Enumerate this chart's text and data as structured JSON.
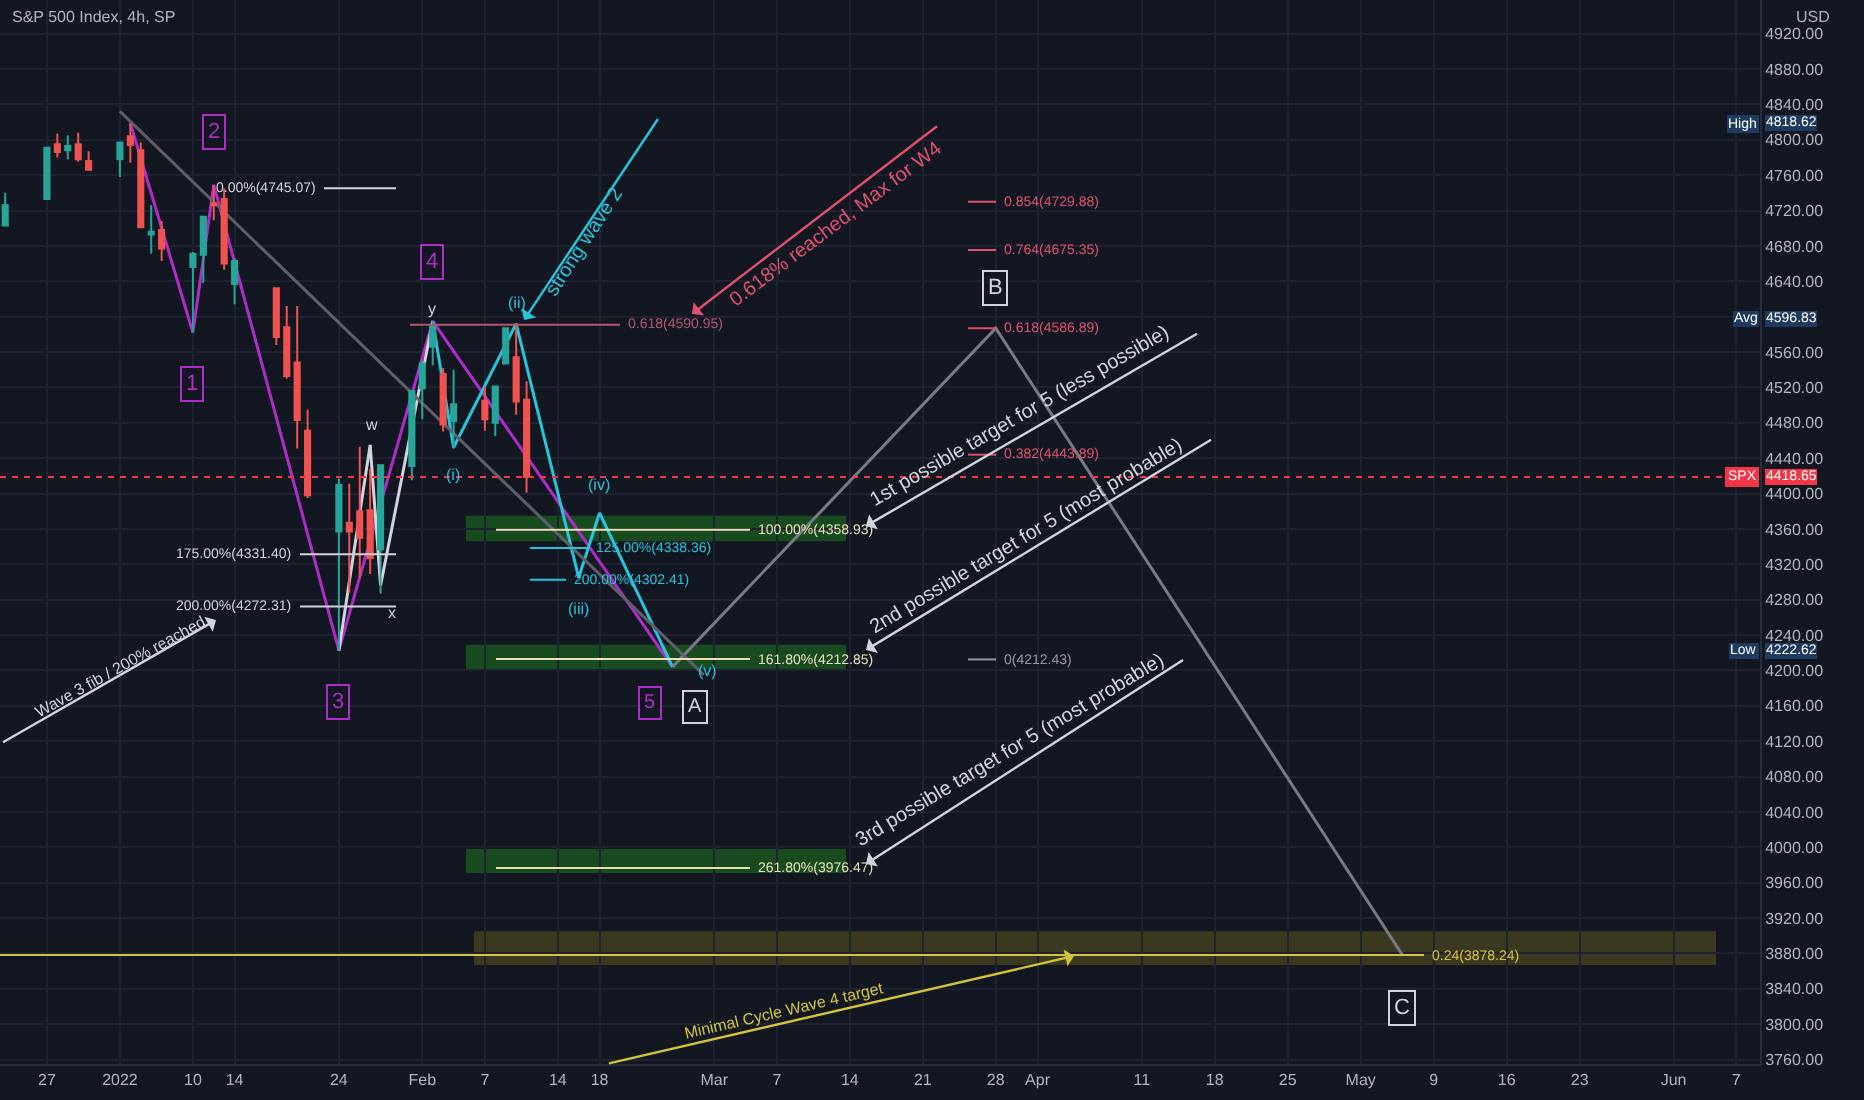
{
  "chart_data": {
    "type": "candlestick",
    "title": "S&P 500 Index, 4h, SP",
    "ylabel": "USD",
    "x": [
      "2021-12-23",
      "2021-12-27",
      "2021-12-28",
      "2021-12-29",
      "2021-12-30",
      "2021-12-31",
      "2022-01-03",
      "2022-01-04",
      "2022-01-05",
      "2022-01-06",
      "2022-01-07",
      "2022-01-10",
      "2022-01-11",
      "2022-01-12",
      "2022-01-13",
      "2022-01-14",
      "2022-01-18",
      "2022-01-19",
      "2022-01-20",
      "2022-01-21",
      "2022-01-24",
      "2022-01-25",
      "2022-01-26",
      "2022-01-27",
      "2022-01-28",
      "2022-01-31",
      "2022-02-01",
      "2022-02-02",
      "2022-02-03",
      "2022-02-04",
      "2022-02-07",
      "2022-02-08",
      "2022-02-09",
      "2022-02-10",
      "2022-02-11"
    ],
    "ohlc": [
      [
        4703,
        4740,
        4703,
        4726
      ],
      [
        4733,
        4791,
        4733,
        4791
      ],
      [
        4795,
        4807,
        4780,
        4786
      ],
      [
        4788,
        4805,
        4778,
        4793
      ],
      [
        4795,
        4808,
        4775,
        4778
      ],
      [
        4776,
        4787,
        4766,
        4766
      ],
      [
        4778,
        4797,
        4758,
        4797
      ],
      [
        4804,
        4818.62,
        4774,
        4794
      ],
      [
        4788,
        4797,
        4700,
        4701
      ],
      [
        4693,
        4726,
        4671,
        4696
      ],
      [
        4698,
        4708,
        4663,
        4677
      ],
      [
        4656,
        4673,
        4582,
        4671
      ],
      [
        4670,
        4714,
        4638,
        4713
      ],
      [
        4728,
        4749,
        4709,
        4726
      ],
      [
        4733,
        4745,
        4653,
        4660
      ],
      [
        4637,
        4666,
        4614,
        4663
      ],
      [
        4632,
        4632,
        4568,
        4577
      ],
      [
        4588,
        4612,
        4530,
        4533
      ],
      [
        4548,
        4612,
        4451,
        4483
      ],
      [
        4471,
        4495,
        4395,
        4398
      ],
      [
        4357,
        4417,
        4222.62,
        4410
      ],
      [
        4367,
        4411,
        4288,
        4357
      ],
      [
        4380,
        4453,
        4305,
        4350
      ],
      [
        4381,
        4428,
        4309,
        4327
      ],
      [
        4337,
        4432,
        4287,
        4432
      ],
      [
        4431,
        4516,
        4415,
        4516
      ],
      [
        4519,
        4550,
        4484,
        4547
      ],
      [
        4566,
        4595,
        4545,
        4590
      ],
      [
        4535,
        4542,
        4470,
        4478
      ],
      [
        4482,
        4540,
        4451,
        4501
      ],
      [
        4505,
        4521,
        4471,
        4484
      ],
      [
        4480,
        4522,
        4465,
        4521
      ],
      [
        4547,
        4588,
        4547,
        4587
      ],
      [
        4554,
        4590,
        4489,
        4504
      ],
      [
        4506,
        4527,
        4401,
        4418.65
      ]
    ],
    "series": [
      {
        "type": "line",
        "color": "#b02cc8",
        "x": [
          "2022-01-04",
          "2022-01-10",
          "2022-01-12",
          "2022-01-24",
          "2022-02-02",
          "2022-02-25"
        ],
        "values": [
          4818.62,
          4582,
          4749,
          4222.62,
          4595,
          4204
        ]
      },
      {
        "type": "line",
        "color": "#d1d4dc",
        "x": [
          "2022-01-24",
          "2022-01-27",
          "2022-01-28",
          "2022-02-02"
        ],
        "values": [
          4222.62,
          4455,
          4296,
          4595
        ]
      },
      {
        "type": "line",
        "color": "#26c6da",
        "x": [
          "2022-02-02",
          "2022-02-04",
          "2022-02-10",
          "2022-02-16",
          "2022-02-18",
          "2022-02-25"
        ],
        "values": [
          4595,
          4452,
          4592,
          4305,
          4378,
          4204
        ]
      },
      {
        "type": "line",
        "color": "#787b86",
        "x": [
          "2022-02-25",
          "2022-03-28",
          "2022-05-06"
        ],
        "values": [
          4204,
          4586.89,
          3878.24
        ]
      },
      {
        "type": "line",
        "color": "#5d606b",
        "x": [
          "2022-01-03",
          "2022-02-28"
        ],
        "values": [
          4832,
          4195
        ]
      }
    ],
    "ref_lines": [
      {
        "axis": "y",
        "value": 4745.07,
        "label": "0.00%(4745.07)",
        "color": "#d1d4dc"
      },
      {
        "axis": "y",
        "value": 4331.4,
        "label": "175.00%(4331.40)",
        "color": "#d1d4dc"
      },
      {
        "axis": "y",
        "value": 4272.31,
        "label": "200.00%(4272.31)",
        "color": "#d1d4dc"
      },
      {
        "axis": "y",
        "value": 4590.95,
        "label": "0.618(4590.95)",
        "color": "#b4566e"
      },
      {
        "axis": "y",
        "value": 4358.93,
        "label": "100.00%(4358.93)",
        "color": "#e6e2b4"
      },
      {
        "axis": "y",
        "value": 4338.36,
        "label": "125.00%(4338.36)",
        "color": "#26c6da"
      },
      {
        "axis": "y",
        "value": 4302.41,
        "label": "200.00%(4302.41)",
        "color": "#26c6da"
      },
      {
        "axis": "y",
        "value": 4212.85,
        "label": "161.80%(4212.85)",
        "color": "#e6e2b4"
      },
      {
        "axis": "y",
        "value": 3976.47,
        "label": "261.80%(3976.47)",
        "color": "#e6e2b4"
      },
      {
        "axis": "y",
        "value": 4729.88,
        "label": "0.854(4729.88)",
        "color": "#e0506e"
      },
      {
        "axis": "y",
        "value": 4675.35,
        "label": "0.764(4675.35)",
        "color": "#e0506e"
      },
      {
        "axis": "y",
        "value": 4586.89,
        "label": "0.618(4586.89)",
        "color": "#e0506e"
      },
      {
        "axis": "y",
        "value": 4443.89,
        "label": "0.382(4443.89)",
        "color": "#e0506e"
      },
      {
        "axis": "y",
        "value": 4212.43,
        "label": "0(4212.43)",
        "color": "#9598a1"
      },
      {
        "axis": "y",
        "value": 3878.24,
        "label": "0.24(3878.24)",
        "color": "#d4c43a"
      },
      {
        "axis": "y",
        "value": 4418.65,
        "label": "SPX",
        "color": "#f23645",
        "line_style": "dotted"
      }
    ],
    "bands": [
      {
        "axis": "y",
        "from": 4346,
        "to": 4375,
        "color": "#1b5e20"
      },
      {
        "axis": "y",
        "from": 4201,
        "to": 4229,
        "color": "#1b5e20"
      },
      {
        "axis": "y",
        "from": 3971,
        "to": 3998,
        "color": "#1b5e20"
      },
      {
        "axis": "y",
        "from": 3867,
        "to": 3905,
        "color": "#4a4620"
      }
    ],
    "annotations": [
      {
        "text": "1",
        "x": "2022-01-10",
        "y": 4582
      },
      {
        "text": "2",
        "x": "2022-01-12",
        "y": 4749
      },
      {
        "text": "3",
        "x": "2022-01-24",
        "y": 4222.62
      },
      {
        "text": "4",
        "x": "2022-02-02",
        "y": 4595
      },
      {
        "text": "5",
        "x": "2022-02-25",
        "y": 4204
      },
      {
        "text": "A",
        "x": "2022-02-25",
        "y": 4204
      },
      {
        "text": "B",
        "x": "2022-03-28",
        "y": 4586.89
      },
      {
        "text": "C",
        "x": "2022-05-06",
        "y": 3878.24
      },
      {
        "text": "w",
        "x": "2022-01-27",
        "y": 4455
      },
      {
        "text": "x",
        "x": "2022-01-28",
        "y": 4296
      },
      {
        "text": "y",
        "x": "2022-02-02",
        "y": 4595
      },
      {
        "text": "(i)",
        "x": "2022-02-04",
        "y": 4452
      },
      {
        "text": "(ii)",
        "x": "2022-02-10",
        "y": 4592
      },
      {
        "text": "(iii)",
        "x": "2022-02-16",
        "y": 4305
      },
      {
        "text": "(iv)",
        "x": "2022-02-18",
        "y": 4378
      },
      {
        "text": "(v)",
        "x": "2022-02-25",
        "y": 4204
      },
      "strong wave 2",
      "0.618% reached, Max for W4",
      "1st possible target for 5 (less possible)",
      "2nd possible target for 5 (most probable)",
      "3rd possible target for 5 (most probable)",
      "Wave 3 fib / 200% reached",
      "Minimal Cycle Wave 4 target",
      {
        "text": "High",
        "y": 4818.62
      },
      {
        "text": "4818.62",
        "y": 4818.62
      },
      {
        "text": "Avg",
        "y": 4596.83
      },
      {
        "text": "4596.83",
        "y": 4596.83
      },
      {
        "text": "Low",
        "y": 4222.62
      },
      {
        "text": "4222.62",
        "y": 4222.62
      },
      {
        "text": "4418.65",
        "y": 4418.65
      }
    ],
    "xlim": [
      "2021-12-22T12:00",
      "2022-06-09T07:00"
    ],
    "ylim": [
      3755,
      4958
    ],
    "xticks": [
      {
        "value": "2021-12-27",
        "label": "27"
      },
      {
        "value": "2022-01-03",
        "label": "2022"
      },
      {
        "value": "2022-01-10",
        "label": "10"
      },
      {
        "value": "2022-01-14",
        "label": "14"
      },
      {
        "value": "2022-01-24",
        "label": "24"
      },
      {
        "value": "2022-02-01",
        "label": "Feb"
      },
      {
        "value": "2022-02-07",
        "label": "7"
      },
      {
        "value": "2022-02-14",
        "label": "14"
      },
      {
        "value": "2022-02-18",
        "label": "18"
      },
      {
        "value": "2022-03-01",
        "label": "Mar"
      },
      {
        "value": "2022-03-07",
        "label": "7"
      },
      {
        "value": "2022-03-14",
        "label": "14"
      },
      {
        "value": "2022-03-21",
        "label": "21"
      },
      {
        "value": "2022-03-28",
        "label": "28"
      },
      {
        "value": "2022-04-01",
        "label": "Apr"
      },
      {
        "value": "2022-04-11",
        "label": "11"
      },
      {
        "value": "2022-04-18",
        "label": "18"
      },
      {
        "value": "2022-04-25",
        "label": "25"
      },
      {
        "value": "2022-05-02",
        "label": "May"
      },
      {
        "value": "2022-05-09",
        "label": "9"
      },
      {
        "value": "2022-05-16",
        "label": "16"
      },
      {
        "value": "2022-05-23",
        "label": "23"
      },
      {
        "value": "2022-06-01",
        "label": "Jun"
      },
      {
        "value": "2022-06-07",
        "label": "7"
      }
    ],
    "yticks": [
      {
        "value": 3760,
        "label": "3760.00"
      },
      {
        "value": 3800,
        "label": "3800.00"
      },
      {
        "value": 3840,
        "label": "3840.00"
      },
      {
        "value": 3880,
        "label": "3880.00"
      },
      {
        "value": 3920,
        "label": "3920.00"
      },
      {
        "value": 3960,
        "label": "3960.00"
      },
      {
        "value": 4000,
        "label": "4000.00"
      },
      {
        "value": 4040,
        "label": "4040.00"
      },
      {
        "value": 4080,
        "label": "4080.00"
      },
      {
        "value": 4120,
        "label": "4120.00"
      },
      {
        "value": 4160,
        "label": "4160.00"
      },
      {
        "value": 4200,
        "label": "4200.00"
      },
      {
        "value": 4240,
        "label": "4240.00"
      },
      {
        "value": 4280,
        "label": "4280.00"
      },
      {
        "value": 4320,
        "label": "4320.00"
      },
      {
        "value": 4360,
        "label": "4360.00"
      },
      {
        "value": 4400,
        "label": "4400.00"
      },
      {
        "value": 4440,
        "label": "4440.00"
      },
      {
        "value": 4480,
        "label": "4480.00"
      },
      {
        "value": 4520,
        "label": "4520.00"
      },
      {
        "value": 4560,
        "label": "4560.00"
      },
      {
        "value": 4600,
        "label": null
      },
      {
        "value": 4640,
        "label": "4640.00"
      },
      {
        "value": 4680,
        "label": "4680.00"
      },
      {
        "value": 4720,
        "label": "4720.00"
      },
      {
        "value": 4760,
        "label": "4760.00"
      },
      {
        "value": 4800,
        "label": "4800.00"
      },
      {
        "value": 4840,
        "label": "4840.00"
      },
      {
        "value": 4880,
        "label": "4880.00"
      },
      {
        "value": 4920,
        "label": "4920.00"
      }
    ],
    "grid": true,
    "marker": "none",
    "line_style": "solid"
  }
}
